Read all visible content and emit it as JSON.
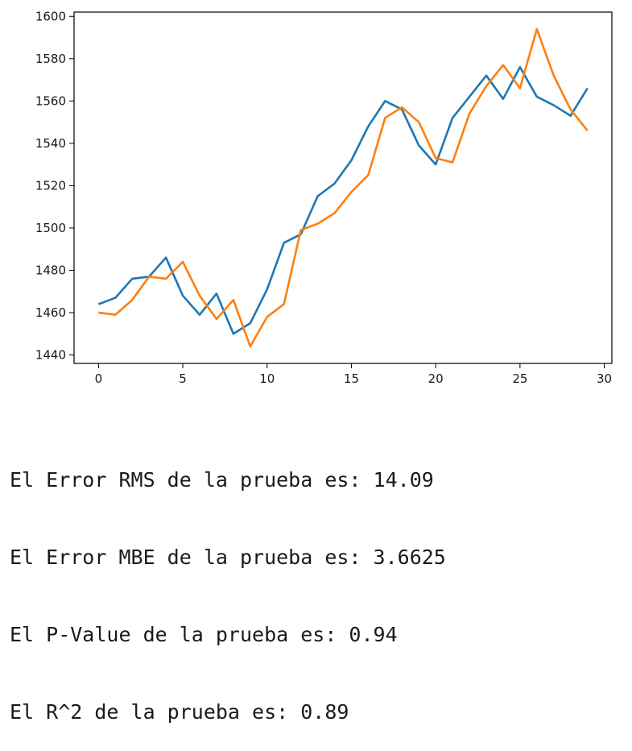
{
  "chart_data": {
    "type": "line",
    "xlim": [
      -1.45,
      30.45
    ],
    "ylim": [
      1436,
      1602
    ],
    "x_ticks": [
      "0",
      "5",
      "10",
      "15",
      "20",
      "25",
      "30"
    ],
    "y_ticks": [
      "1440",
      "1460",
      "1480",
      "1500",
      "1520",
      "1540",
      "1560",
      "1580",
      "1600"
    ],
    "grid": false,
    "legend": "none",
    "series": [
      {
        "color": "#1f77b4",
        "x": [
          0,
          1,
          2,
          3,
          4,
          5,
          6,
          7,
          8,
          9,
          10,
          11,
          12,
          13,
          14,
          15,
          16,
          17,
          18,
          19,
          20,
          21,
          22,
          23,
          24,
          25,
          26,
          27,
          28,
          29
        ],
        "values": [
          1464,
          1467,
          1476,
          1477,
          1486,
          1468,
          1459,
          1469,
          1450,
          1455,
          1471,
          1493,
          1497,
          1515,
          1521,
          1532,
          1548,
          1560,
          1556,
          1539,
          1530,
          1552,
          1562,
          1572,
          1561,
          1576,
          1562,
          1558,
          1553,
          1566
        ]
      },
      {
        "color": "#ff7f0e",
        "x": [
          0,
          1,
          2,
          3,
          4,
          5,
          6,
          7,
          8,
          9,
          10,
          11,
          12,
          13,
          14,
          15,
          16,
          17,
          18,
          19,
          20,
          21,
          22,
          23,
          24,
          25,
          26,
          27,
          28,
          29
        ],
        "values": [
          1460,
          1459,
          1466,
          1477,
          1476,
          1484,
          1468,
          1457,
          1466,
          1444,
          1458,
          1464,
          1499,
          1502,
          1507,
          1517,
          1525,
          1552,
          1557,
          1550,
          1533,
          1531,
          1554,
          1567,
          1577,
          1566,
          1594,
          1572,
          1556,
          1546
        ]
      }
    ]
  },
  "output": {
    "line1": "El Error RMS de la prueba es: 14.09",
    "line2": "El Error MBE de la prueba es: 3.6625",
    "line3": "El P-Value de la prueba es: 0.94",
    "line4": "El R^2 de la prueba es: 0.89"
  }
}
